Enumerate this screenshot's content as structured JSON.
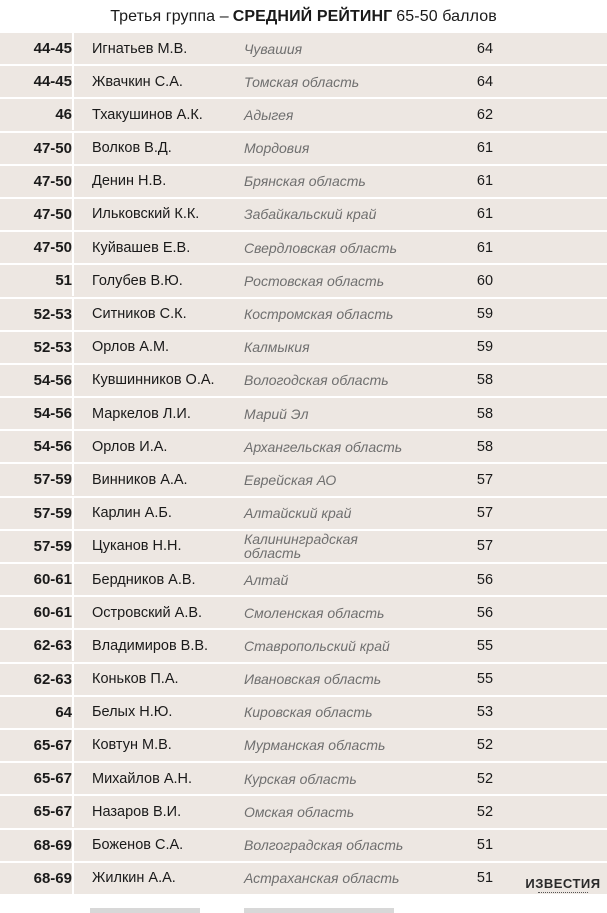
{
  "header": {
    "prefix": "Третья группа –",
    "bold": "СРЕДНИЙ РЕЙТИНГ",
    "suffix": "65-50 баллов"
  },
  "rows": [
    {
      "rank": "44-45",
      "name": "Игнатьев М.В.",
      "region": "Чувашия",
      "score": "64"
    },
    {
      "rank": "44-45",
      "name": "Жвачкин С.А.",
      "region": "Томская область",
      "score": "64"
    },
    {
      "rank": "46",
      "name": "Тхакушинов А.К.",
      "region": "Адыгея",
      "score": "62"
    },
    {
      "rank": "47-50",
      "name": "Волков В.Д.",
      "region": "Мордовия",
      "score": "61"
    },
    {
      "rank": "47-50",
      "name": "Денин Н.В.",
      "region": "Брянская область",
      "score": "61"
    },
    {
      "rank": "47-50",
      "name": "Ильковский К.К.",
      "region": "Забайкальский край",
      "score": "61"
    },
    {
      "rank": "47-50",
      "name": "Куйвашев Е.В.",
      "region": "Свердловская область",
      "score": "61"
    },
    {
      "rank": "51",
      "name": "Голубев В.Ю.",
      "region": "Ростовская область",
      "score": "60"
    },
    {
      "rank": "52-53",
      "name": "Ситников С.К.",
      "region": "Костромская область",
      "score": "59"
    },
    {
      "rank": "52-53",
      "name": "Орлов А.М.",
      "region": "Калмыкия",
      "score": "59"
    },
    {
      "rank": "54-56",
      "name": "Кувшинников О.А.",
      "region": "Вологодская область",
      "score": "58"
    },
    {
      "rank": "54-56",
      "name": "Маркелов Л.И.",
      "region": "Марий Эл",
      "score": "58"
    },
    {
      "rank": "54-56",
      "name": "Орлов И.А.",
      "region": "Архангельская область",
      "score": "58"
    },
    {
      "rank": "57-59",
      "name": "Винников А.А.",
      "region": "Еврейская АО",
      "score": "57"
    },
    {
      "rank": "57-59",
      "name": "Карлин А.Б.",
      "region": "Алтайский край",
      "score": "57"
    },
    {
      "rank": "57-59",
      "name": "Цуканов Н.Н.",
      "region": "Калининградская область",
      "score": "57"
    },
    {
      "rank": "60-61",
      "name": "Бердников А.В.",
      "region": "Алтай",
      "score": "56"
    },
    {
      "rank": "60-61",
      "name": "Островский А.В.",
      "region": "Смоленская область",
      "score": "56"
    },
    {
      "rank": "62-63",
      "name": "Владимиров В.В.",
      "region": "Ставропольский край",
      "score": "55"
    },
    {
      "rank": "62-63",
      "name": "Коньков П.А.",
      "region": "Ивановская область",
      "score": "55"
    },
    {
      "rank": "64",
      "name": "Белых Н.Ю.",
      "region": "Кировская область",
      "score": "53"
    },
    {
      "rank": "65-67",
      "name": "Ковтун М.В.",
      "region": "Мурманская область",
      "score": "52"
    },
    {
      "rank": "65-67",
      "name": "Михайлов А.Н.",
      "region": "Курская область",
      "score": "52"
    },
    {
      "rank": "65-67",
      "name": "Назаров В.И.",
      "region": "Омская область",
      "score": "52"
    },
    {
      "rank": "68-69",
      "name": "Боженов С.А.",
      "region": "Волгоградская область",
      "score": "51"
    },
    {
      "rank": "68-69",
      "name": "Жилкин А.А.",
      "region": "Астраханская область",
      "score": "51"
    }
  ],
  "logo": "ИЗВЕСТИЯ",
  "colors": {
    "row_bg": "#ede7e2",
    "region_text": "#6f6f6f"
  }
}
